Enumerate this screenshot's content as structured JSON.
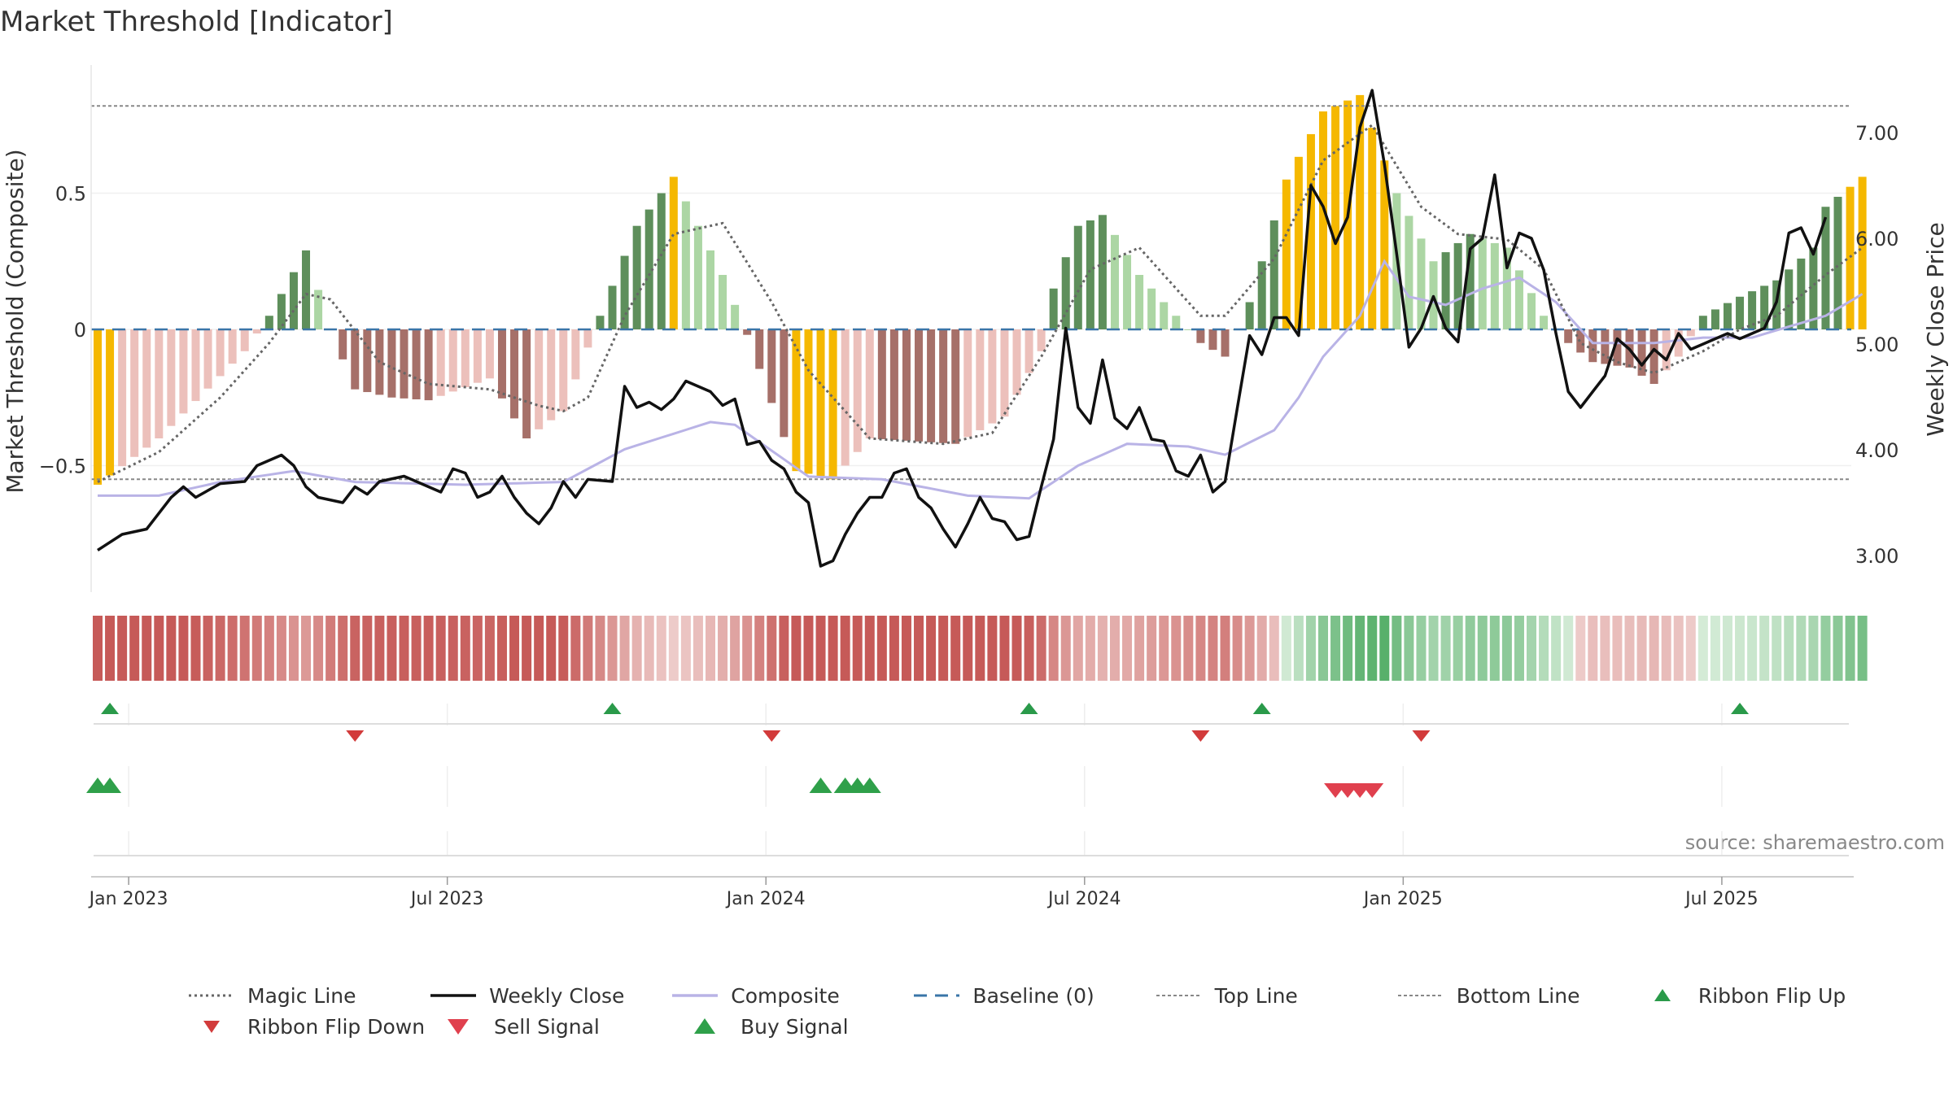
{
  "chart_data": {
    "type": "line",
    "title": "Market Threshold [Indicator]",
    "ylabel_left": "Market Threshold (Composite)",
    "ylabel_right": "Weekly Close Price",
    "source_note": "source: sharemaestro.com",
    "left_ylim": [
      -0.97,
      1.0
    ],
    "right_ylim": [
      2.65,
      7.65
    ],
    "left_ticks": [
      {
        "v": 0.5,
        "label": "0.5"
      },
      {
        "v": 0,
        "label": "0"
      },
      {
        "v": -0.5,
        "label": "−0.5"
      }
    ],
    "right_ticks": [
      {
        "v": 3.0,
        "label": "3.00"
      },
      {
        "v": 4.0,
        "label": "4.00"
      },
      {
        "v": 5.0,
        "label": "5.00"
      },
      {
        "v": 6.0,
        "label": "6.00"
      },
      {
        "v": 7.0,
        "label": "7.00"
      }
    ],
    "x_ticks": [
      {
        "week": 2,
        "label": "Jan 2023"
      },
      {
        "week": 28,
        "label": "Jul 2023"
      },
      {
        "week": 54,
        "label": "Jan 2024"
      },
      {
        "week": 80,
        "label": "Jul 2024"
      },
      {
        "week": 106,
        "label": "Jan 2025"
      },
      {
        "week": 132,
        "label": "Jul 2025"
      }
    ],
    "top_line": 0.82,
    "bottom_line": -0.55,
    "baseline": 0,
    "weeks": 145,
    "segments": [
      {
        "t": 0,
        "v": -0.57
      },
      {
        "t": 5,
        "v": -0.4
      },
      {
        "t": 12,
        "v": -0.08
      },
      {
        "t": 14,
        "v": 0.05
      },
      {
        "t": 17,
        "v": 0.29
      },
      {
        "t": 19,
        "v": 0.0
      },
      {
        "t": 21,
        "v": -0.22
      },
      {
        "t": 24,
        "v": -0.25
      },
      {
        "t": 27,
        "v": -0.26
      },
      {
        "t": 32,
        "v": -0.18
      },
      {
        "t": 35,
        "v": -0.4
      },
      {
        "t": 38,
        "v": -0.3
      },
      {
        "t": 41,
        "v": 0.05
      },
      {
        "t": 44,
        "v": 0.38
      },
      {
        "t": 47,
        "v": 0.56
      },
      {
        "t": 51,
        "v": 0.2
      },
      {
        "t": 53,
        "v": -0.02
      },
      {
        "t": 57,
        "v": -0.52
      },
      {
        "t": 60,
        "v": -0.55
      },
      {
        "t": 63,
        "v": -0.4
      },
      {
        "t": 70,
        "v": -0.42
      },
      {
        "t": 74,
        "v": -0.32
      },
      {
        "t": 77,
        "v": -0.08
      },
      {
        "t": 78,
        "v": 0.15
      },
      {
        "t": 80,
        "v": 0.38
      },
      {
        "t": 82,
        "v": 0.42
      },
      {
        "t": 85,
        "v": 0.2
      },
      {
        "t": 88,
        "v": 0.05
      },
      {
        "t": 90,
        "v": -0.05
      },
      {
        "t": 92,
        "v": -0.1
      },
      {
        "t": 94,
        "v": 0.1
      },
      {
        "t": 97,
        "v": 0.55
      },
      {
        "t": 100,
        "v": 0.8
      },
      {
        "t": 103,
        "v": 0.86
      },
      {
        "t": 106,
        "v": 0.5
      },
      {
        "t": 109,
        "v": 0.25
      },
      {
        "t": 112,
        "v": 0.35
      },
      {
        "t": 115,
        "v": 0.3
      },
      {
        "t": 118,
        "v": 0.05
      },
      {
        "t": 120,
        "v": -0.05
      },
      {
        "t": 122,
        "v": -0.12
      },
      {
        "t": 125,
        "v": -0.14
      },
      {
        "t": 127,
        "v": -0.2
      },
      {
        "t": 129,
        "v": -0.1
      },
      {
        "t": 131,
        "v": 0.05
      },
      {
        "t": 134,
        "v": 0.12
      },
      {
        "t": 137,
        "v": 0.18
      },
      {
        "t": 140,
        "v": 0.3
      },
      {
        "t": 141,
        "v": 0.45
      },
      {
        "t": 144,
        "v": 0.56
      }
    ],
    "magic_segments": [
      {
        "t": 0,
        "v": -0.56
      },
      {
        "t": 5,
        "v": -0.45
      },
      {
        "t": 10,
        "v": -0.25
      },
      {
        "t": 14,
        "v": -0.05
      },
      {
        "t": 17,
        "v": 0.13
      },
      {
        "t": 19,
        "v": 0.11
      },
      {
        "t": 23,
        "v": -0.12
      },
      {
        "t": 27,
        "v": -0.2
      },
      {
        "t": 32,
        "v": -0.22
      },
      {
        "t": 36,
        "v": -0.28
      },
      {
        "t": 38,
        "v": -0.3
      },
      {
        "t": 40,
        "v": -0.25
      },
      {
        "t": 43,
        "v": 0.05
      },
      {
        "t": 47,
        "v": 0.35
      },
      {
        "t": 51,
        "v": 0.39
      },
      {
        "t": 55,
        "v": 0.1
      },
      {
        "t": 58,
        "v": -0.15
      },
      {
        "t": 63,
        "v": -0.4
      },
      {
        "t": 69,
        "v": -0.42
      },
      {
        "t": 73,
        "v": -0.38
      },
      {
        "t": 77,
        "v": -0.1
      },
      {
        "t": 81,
        "v": 0.22
      },
      {
        "t": 85,
        "v": 0.3
      },
      {
        "t": 90,
        "v": 0.05
      },
      {
        "t": 92,
        "v": 0.05
      },
      {
        "t": 96,
        "v": 0.26
      },
      {
        "t": 100,
        "v": 0.62
      },
      {
        "t": 104,
        "v": 0.75
      },
      {
        "t": 108,
        "v": 0.45
      },
      {
        "t": 111,
        "v": 0.35
      },
      {
        "t": 115,
        "v": 0.33
      },
      {
        "t": 118,
        "v": 0.22
      },
      {
        "t": 121,
        "v": -0.05
      },
      {
        "t": 124,
        "v": -0.12
      },
      {
        "t": 127,
        "v": -0.16
      },
      {
        "t": 131,
        "v": -0.08
      },
      {
        "t": 134,
        "v": 0.0
      },
      {
        "t": 137,
        "v": 0.05
      },
      {
        "t": 141,
        "v": 0.2
      },
      {
        "t": 144,
        "v": 0.3
      }
    ],
    "composite_segments": [
      {
        "t": 0,
        "v": -0.61
      },
      {
        "t": 5,
        "v": -0.61
      },
      {
        "t": 10,
        "v": -0.56
      },
      {
        "t": 16,
        "v": -0.52
      },
      {
        "t": 21,
        "v": -0.56
      },
      {
        "t": 30,
        "v": -0.57
      },
      {
        "t": 38,
        "v": -0.56
      },
      {
        "t": 43,
        "v": -0.44
      },
      {
        "t": 50,
        "v": -0.34
      },
      {
        "t": 52,
        "v": -0.35
      },
      {
        "t": 58,
        "v": -0.54
      },
      {
        "t": 64,
        "v": -0.55
      },
      {
        "t": 71,
        "v": -0.61
      },
      {
        "t": 76,
        "v": -0.62
      },
      {
        "t": 80,
        "v": -0.5
      },
      {
        "t": 84,
        "v": -0.42
      },
      {
        "t": 89,
        "v": -0.43
      },
      {
        "t": 92,
        "v": -0.46
      },
      {
        "t": 96,
        "v": -0.37
      },
      {
        "t": 98,
        "v": -0.25
      },
      {
        "t": 100,
        "v": -0.1
      },
      {
        "t": 103,
        "v": 0.05
      },
      {
        "t": 105,
        "v": 0.25
      },
      {
        "t": 107,
        "v": 0.12
      },
      {
        "t": 110,
        "v": 0.09
      },
      {
        "t": 113,
        "v": 0.15
      },
      {
        "t": 116,
        "v": 0.19
      },
      {
        "t": 119,
        "v": 0.1
      },
      {
        "t": 122,
        "v": -0.05
      },
      {
        "t": 127,
        "v": -0.05
      },
      {
        "t": 131,
        "v": -0.03
      },
      {
        "t": 135,
        "v": -0.03
      },
      {
        "t": 141,
        "v": 0.05
      },
      {
        "t": 144,
        "v": 0.13
      }
    ],
    "close_points": [
      {
        "t": 0,
        "v": 3.05
      },
      {
        "t": 2,
        "v": 3.2
      },
      {
        "t": 4,
        "v": 3.25
      },
      {
        "t": 6,
        "v": 3.55
      },
      {
        "t": 7,
        "v": 3.65
      },
      {
        "t": 8,
        "v": 3.55
      },
      {
        "t": 10,
        "v": 3.68
      },
      {
        "t": 12,
        "v": 3.7
      },
      {
        "t": 13,
        "v": 3.85
      },
      {
        "t": 15,
        "v": 3.95
      },
      {
        "t": 16,
        "v": 3.85
      },
      {
        "t": 17,
        "v": 3.65
      },
      {
        "t": 18,
        "v": 3.55
      },
      {
        "t": 20,
        "v": 3.5
      },
      {
        "t": 21,
        "v": 3.65
      },
      {
        "t": 22,
        "v": 3.58
      },
      {
        "t": 23,
        "v": 3.7
      },
      {
        "t": 25,
        "v": 3.75
      },
      {
        "t": 26,
        "v": 3.7
      },
      {
        "t": 27,
        "v": 3.65
      },
      {
        "t": 28,
        "v": 3.6
      },
      {
        "t": 29,
        "v": 3.82
      },
      {
        "t": 30,
        "v": 3.78
      },
      {
        "t": 31,
        "v": 3.55
      },
      {
        "t": 32,
        "v": 3.6
      },
      {
        "t": 33,
        "v": 3.75
      },
      {
        "t": 34,
        "v": 3.55
      },
      {
        "t": 35,
        "v": 3.4
      },
      {
        "t": 36,
        "v": 3.3
      },
      {
        "t": 37,
        "v": 3.45
      },
      {
        "t": 38,
        "v": 3.7
      },
      {
        "t": 39,
        "v": 3.55
      },
      {
        "t": 40,
        "v": 3.72
      },
      {
        "t": 42,
        "v": 3.7
      },
      {
        "t": 43,
        "v": 4.6
      },
      {
        "t": 44,
        "v": 4.4
      },
      {
        "t": 45,
        "v": 4.45
      },
      {
        "t": 46,
        "v": 4.38
      },
      {
        "t": 47,
        "v": 4.48
      },
      {
        "t": 48,
        "v": 4.65
      },
      {
        "t": 49,
        "v": 4.6
      },
      {
        "t": 50,
        "v": 4.55
      },
      {
        "t": 51,
        "v": 4.42
      },
      {
        "t": 52,
        "v": 4.48
      },
      {
        "t": 53,
        "v": 4.05
      },
      {
        "t": 54,
        "v": 4.08
      },
      {
        "t": 55,
        "v": 3.9
      },
      {
        "t": 56,
        "v": 3.82
      },
      {
        "t": 57,
        "v": 3.6
      },
      {
        "t": 58,
        "v": 3.5
      },
      {
        "t": 59,
        "v": 2.9
      },
      {
        "t": 60,
        "v": 2.95
      },
      {
        "t": 61,
        "v": 3.2
      },
      {
        "t": 62,
        "v": 3.4
      },
      {
        "t": 63,
        "v": 3.55
      },
      {
        "t": 64,
        "v": 3.55
      },
      {
        "t": 65,
        "v": 3.78
      },
      {
        "t": 66,
        "v": 3.82
      },
      {
        "t": 67,
        "v": 3.55
      },
      {
        "t": 68,
        "v": 3.45
      },
      {
        "t": 69,
        "v": 3.25
      },
      {
        "t": 70,
        "v": 3.08
      },
      {
        "t": 71,
        "v": 3.3
      },
      {
        "t": 72,
        "v": 3.55
      },
      {
        "t": 73,
        "v": 3.35
      },
      {
        "t": 74,
        "v": 3.32
      },
      {
        "t": 75,
        "v": 3.15
      },
      {
        "t": 76,
        "v": 3.18
      },
      {
        "t": 77,
        "v": 3.65
      },
      {
        "t": 78,
        "v": 4.1
      },
      {
        "t": 79,
        "v": 5.15
      },
      {
        "t": 80,
        "v": 4.4
      },
      {
        "t": 81,
        "v": 4.25
      },
      {
        "t": 82,
        "v": 4.85
      },
      {
        "t": 83,
        "v": 4.3
      },
      {
        "t": 84,
        "v": 4.2
      },
      {
        "t": 85,
        "v": 4.4
      },
      {
        "t": 86,
        "v": 4.1
      },
      {
        "t": 87,
        "v": 4.08
      },
      {
        "t": 88,
        "v": 3.8
      },
      {
        "t": 89,
        "v": 3.75
      },
      {
        "t": 90,
        "v": 3.95
      },
      {
        "t": 91,
        "v": 3.6
      },
      {
        "t": 92,
        "v": 3.7
      },
      {
        "t": 93,
        "v": 4.4
      },
      {
        "t": 94,
        "v": 5.08
      },
      {
        "t": 95,
        "v": 4.9
      },
      {
        "t": 96,
        "v": 5.25
      },
      {
        "t": 97,
        "v": 5.25
      },
      {
        "t": 98,
        "v": 5.08
      },
      {
        "t": 99,
        "v": 6.5
      },
      {
        "t": 100,
        "v": 6.3
      },
      {
        "t": 101,
        "v": 5.95
      },
      {
        "t": 102,
        "v": 6.2
      },
      {
        "t": 103,
        "v": 7.05
      },
      {
        "t": 104,
        "v": 7.4
      },
      {
        "t": 105,
        "v": 6.7
      },
      {
        "t": 106,
        "v": 5.85
      },
      {
        "t": 107,
        "v": 4.97
      },
      {
        "t": 108,
        "v": 5.15
      },
      {
        "t": 109,
        "v": 5.45
      },
      {
        "t": 110,
        "v": 5.15
      },
      {
        "t": 111,
        "v": 5.02
      },
      {
        "t": 112,
        "v": 5.9
      },
      {
        "t": 113,
        "v": 6.0
      },
      {
        "t": 114,
        "v": 6.6
      },
      {
        "t": 115,
        "v": 5.72
      },
      {
        "t": 116,
        "v": 6.05
      },
      {
        "t": 117,
        "v": 6.0
      },
      {
        "t": 118,
        "v": 5.7
      },
      {
        "t": 119,
        "v": 5.1
      },
      {
        "t": 120,
        "v": 4.55
      },
      {
        "t": 121,
        "v": 4.4
      },
      {
        "t": 122,
        "v": 4.55
      },
      {
        "t": 123,
        "v": 4.7
      },
      {
        "t": 124,
        "v": 5.05
      },
      {
        "t": 125,
        "v": 4.95
      },
      {
        "t": 126,
        "v": 4.8
      },
      {
        "t": 127,
        "v": 4.95
      },
      {
        "t": 128,
        "v": 4.85
      },
      {
        "t": 129,
        "v": 5.1
      },
      {
        "t": 130,
        "v": 4.95
      },
      {
        "t": 131,
        "v": 5.0
      },
      {
        "t": 132,
        "v": 5.05
      },
      {
        "t": 133,
        "v": 5.1
      },
      {
        "t": 134,
        "v": 5.05
      },
      {
        "t": 135,
        "v": 5.1
      },
      {
        "t": 136,
        "v": 5.15
      },
      {
        "t": 137,
        "v": 5.4
      },
      {
        "t": 138,
        "v": 6.05
      },
      {
        "t": 139,
        "v": 6.1
      },
      {
        "t": 140,
        "v": 5.85
      },
      {
        "t": 141,
        "v": 6.2
      }
    ],
    "ribbon_flip_up_weeks": [
      1,
      42,
      76,
      95,
      134
    ],
    "ribbon_flip_down_weeks": [
      21,
      55,
      90,
      108
    ],
    "buy_signal_weeks": [
      0,
      1,
      59,
      61,
      62,
      63
    ],
    "sell_signal_weeks": [
      101,
      102,
      103,
      104
    ]
  },
  "legend": [
    {
      "label": "Magic Line",
      "symbol": "dotted",
      "color": "#666666"
    },
    {
      "label": "Weekly Close",
      "symbol": "solid",
      "color": "#111111"
    },
    {
      "label": "Composite",
      "symbol": "solid-light",
      "color": "#b9b3e6"
    },
    {
      "label": "Baseline (0)",
      "symbol": "dashed",
      "color": "#3a75a8"
    },
    {
      "label": "Top Line",
      "symbol": "dotted-light",
      "color": "#888888"
    },
    {
      "label": "Bottom Line",
      "symbol": "dotted-light",
      "color": "#888888"
    },
    {
      "label": "Ribbon Flip Up",
      "symbol": "tri-up",
      "color": "#2a9a4a"
    },
    {
      "label": "Ribbon Flip Down",
      "symbol": "tri-down",
      "color": "#d23b3b"
    },
    {
      "label": "Sell Signal",
      "symbol": "tri-down-big",
      "color": "#e0404e"
    },
    {
      "label": "Buy Signal",
      "symbol": "tri-up-big",
      "color": "#2fa04a"
    }
  ],
  "colors": {
    "bar_pos_dark": "#5e8f5b",
    "bar_pos_light": "#acd6a4",
    "bar_neg_dark": "#a67069",
    "bar_neg_light": "#ecc0bb",
    "bar_extreme": "#f5b800",
    "baseline": "#3a75a8"
  }
}
